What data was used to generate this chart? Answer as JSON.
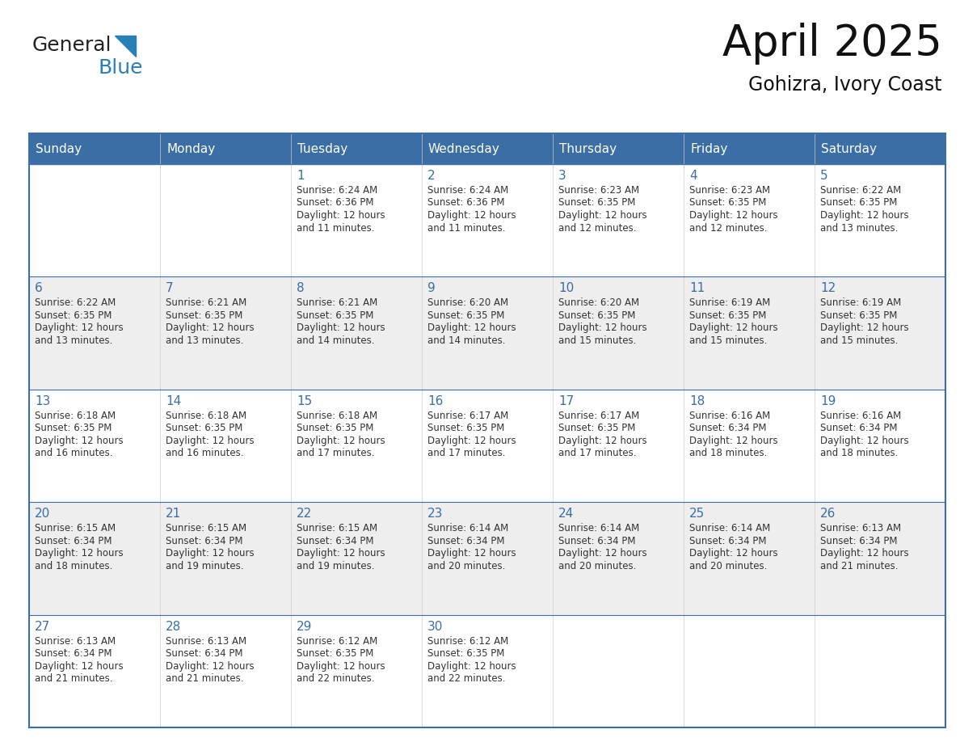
{
  "title": "April 2025",
  "subtitle": "Gohizra, Ivory Coast",
  "header_color": "#3a6ea5",
  "header_text_color": "#FFFFFF",
  "row_bg_colors": [
    "#FFFFFF",
    "#EEEEEE"
  ],
  "cell_border_color": "#3a6ea5",
  "day_number_color": "#3a6ea5",
  "text_color": "#333333",
  "days_of_week": [
    "Sunday",
    "Monday",
    "Tuesday",
    "Wednesday",
    "Thursday",
    "Friday",
    "Saturday"
  ],
  "calendar_data": [
    [
      {
        "day": 0,
        "sunrise": "",
        "sunset": "",
        "daylight": ""
      },
      {
        "day": 0,
        "sunrise": "",
        "sunset": "",
        "daylight": ""
      },
      {
        "day": 1,
        "sunrise": "6:24 AM",
        "sunset": "6:36 PM",
        "daylight": "11 minutes."
      },
      {
        "day": 2,
        "sunrise": "6:24 AM",
        "sunset": "6:36 PM",
        "daylight": "11 minutes."
      },
      {
        "day": 3,
        "sunrise": "6:23 AM",
        "sunset": "6:35 PM",
        "daylight": "12 minutes."
      },
      {
        "day": 4,
        "sunrise": "6:23 AM",
        "sunset": "6:35 PM",
        "daylight": "12 minutes."
      },
      {
        "day": 5,
        "sunrise": "6:22 AM",
        "sunset": "6:35 PM",
        "daylight": "13 minutes."
      }
    ],
    [
      {
        "day": 6,
        "sunrise": "6:22 AM",
        "sunset": "6:35 PM",
        "daylight": "13 minutes."
      },
      {
        "day": 7,
        "sunrise": "6:21 AM",
        "sunset": "6:35 PM",
        "daylight": "13 minutes."
      },
      {
        "day": 8,
        "sunrise": "6:21 AM",
        "sunset": "6:35 PM",
        "daylight": "14 minutes."
      },
      {
        "day": 9,
        "sunrise": "6:20 AM",
        "sunset": "6:35 PM",
        "daylight": "14 minutes."
      },
      {
        "day": 10,
        "sunrise": "6:20 AM",
        "sunset": "6:35 PM",
        "daylight": "15 minutes."
      },
      {
        "day": 11,
        "sunrise": "6:19 AM",
        "sunset": "6:35 PM",
        "daylight": "15 minutes."
      },
      {
        "day": 12,
        "sunrise": "6:19 AM",
        "sunset": "6:35 PM",
        "daylight": "15 minutes."
      }
    ],
    [
      {
        "day": 13,
        "sunrise": "6:18 AM",
        "sunset": "6:35 PM",
        "daylight": "16 minutes."
      },
      {
        "day": 14,
        "sunrise": "6:18 AM",
        "sunset": "6:35 PM",
        "daylight": "16 minutes."
      },
      {
        "day": 15,
        "sunrise": "6:18 AM",
        "sunset": "6:35 PM",
        "daylight": "17 minutes."
      },
      {
        "day": 16,
        "sunrise": "6:17 AM",
        "sunset": "6:35 PM",
        "daylight": "17 minutes."
      },
      {
        "day": 17,
        "sunrise": "6:17 AM",
        "sunset": "6:35 PM",
        "daylight": "17 minutes."
      },
      {
        "day": 18,
        "sunrise": "6:16 AM",
        "sunset": "6:34 PM",
        "daylight": "18 minutes."
      },
      {
        "day": 19,
        "sunrise": "6:16 AM",
        "sunset": "6:34 PM",
        "daylight": "18 minutes."
      }
    ],
    [
      {
        "day": 20,
        "sunrise": "6:15 AM",
        "sunset": "6:34 PM",
        "daylight": "18 minutes."
      },
      {
        "day": 21,
        "sunrise": "6:15 AM",
        "sunset": "6:34 PM",
        "daylight": "19 minutes."
      },
      {
        "day": 22,
        "sunrise": "6:15 AM",
        "sunset": "6:34 PM",
        "daylight": "19 minutes."
      },
      {
        "day": 23,
        "sunrise": "6:14 AM",
        "sunset": "6:34 PM",
        "daylight": "20 minutes."
      },
      {
        "day": 24,
        "sunrise": "6:14 AM",
        "sunset": "6:34 PM",
        "daylight": "20 minutes."
      },
      {
        "day": 25,
        "sunrise": "6:14 AM",
        "sunset": "6:34 PM",
        "daylight": "20 minutes."
      },
      {
        "day": 26,
        "sunrise": "6:13 AM",
        "sunset": "6:34 PM",
        "daylight": "21 minutes."
      }
    ],
    [
      {
        "day": 27,
        "sunrise": "6:13 AM",
        "sunset": "6:34 PM",
        "daylight": "21 minutes."
      },
      {
        "day": 28,
        "sunrise": "6:13 AM",
        "sunset": "6:34 PM",
        "daylight": "21 minutes."
      },
      {
        "day": 29,
        "sunrise": "6:12 AM",
        "sunset": "6:35 PM",
        "daylight": "22 minutes."
      },
      {
        "day": 30,
        "sunrise": "6:12 AM",
        "sunset": "6:35 PM",
        "daylight": "22 minutes."
      },
      {
        "day": 0,
        "sunrise": "",
        "sunset": "",
        "daylight": ""
      },
      {
        "day": 0,
        "sunrise": "",
        "sunset": "",
        "daylight": ""
      },
      {
        "day": 0,
        "sunrise": "",
        "sunset": "",
        "daylight": ""
      }
    ]
  ],
  "logo_color1": "#222222",
  "logo_color2": "#2980b9",
  "logo_triangle_color": "#2980b9",
  "title_fontsize": 38,
  "subtitle_fontsize": 17,
  "header_fontsize": 11,
  "day_num_fontsize": 11,
  "cell_text_fontsize": 8.5
}
